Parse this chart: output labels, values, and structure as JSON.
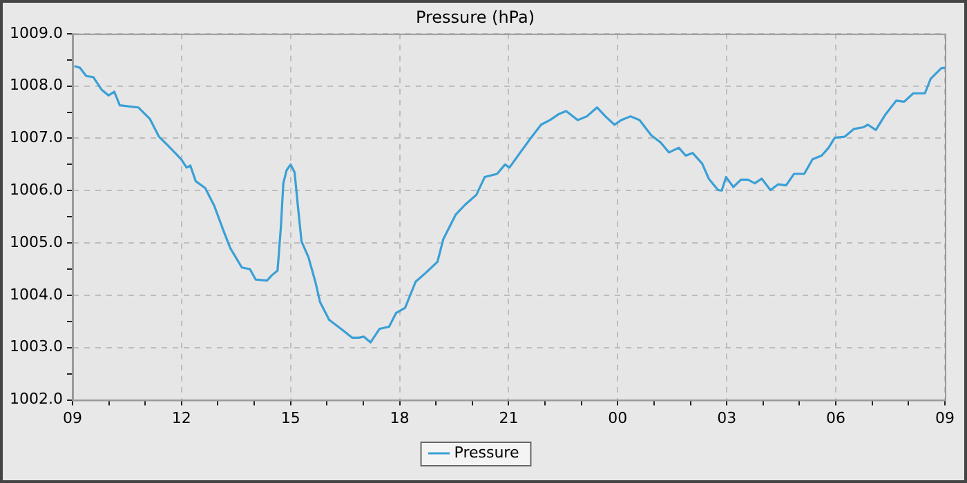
{
  "chart_data": {
    "type": "line",
    "title": "Pressure (hPa)",
    "xlim": [
      9,
      33
    ],
    "xticks": [
      {
        "value": 9,
        "label": "09"
      },
      {
        "value": 10,
        "label": null
      },
      {
        "value": 11,
        "label": null
      },
      {
        "value": 12,
        "label": "12"
      },
      {
        "value": 13,
        "label": null
      },
      {
        "value": 14,
        "label": null
      },
      {
        "value": 15,
        "label": "15"
      },
      {
        "value": 16,
        "label": null
      },
      {
        "value": 17,
        "label": null
      },
      {
        "value": 18,
        "label": "18"
      },
      {
        "value": 19,
        "label": null
      },
      {
        "value": 20,
        "label": null
      },
      {
        "value": 21,
        "label": "21"
      },
      {
        "value": 22,
        "label": null
      },
      {
        "value": 23,
        "label": null
      },
      {
        "value": 24,
        "label": "00"
      },
      {
        "value": 25,
        "label": null
      },
      {
        "value": 26,
        "label": null
      },
      {
        "value": 27,
        "label": "03"
      },
      {
        "value": 28,
        "label": null
      },
      {
        "value": 29,
        "label": null
      },
      {
        "value": 30,
        "label": "06"
      },
      {
        "value": 31,
        "label": null
      },
      {
        "value": 32,
        "label": null
      },
      {
        "value": 33,
        "label": "09"
      }
    ],
    "ylim": [
      1002,
      1009
    ],
    "yticks": [
      {
        "value": 1002,
        "label": "1002.0"
      },
      {
        "value": 1002.5,
        "label": null
      },
      {
        "value": 1003,
        "label": "1003.0"
      },
      {
        "value": 1003.5,
        "label": null
      },
      {
        "value": 1004,
        "label": "1004.0"
      },
      {
        "value": 1004.5,
        "label": null
      },
      {
        "value": 1005,
        "label": "1005.0"
      },
      {
        "value": 1005.5,
        "label": null
      },
      {
        "value": 1006,
        "label": "1006.0"
      },
      {
        "value": 1006.5,
        "label": null
      },
      {
        "value": 1007,
        "label": "1007.0"
      },
      {
        "value": 1007.5,
        "label": null
      },
      {
        "value": 1008,
        "label": "1008.0"
      },
      {
        "value": 1008.5,
        "label": null
      },
      {
        "value": 1009,
        "label": "1009.0"
      }
    ],
    "grid": true,
    "legend": "bottom",
    "marker": "none",
    "line_style": "solid",
    "series": [
      {
        "name": "Pressure",
        "color": "#3a9fd6",
        "x": [
          9.05,
          9.2,
          9.38,
          9.57,
          9.8,
          9.99,
          10.15,
          10.3,
          10.81,
          11.13,
          11.38,
          11.63,
          11.99,
          12.14,
          12.24,
          12.39,
          12.65,
          12.9,
          13.15,
          13.34,
          13.66,
          13.88,
          14.04,
          14.35,
          14.48,
          14.64,
          14.73,
          14.8,
          14.89,
          15.0,
          15.11,
          15.2,
          15.3,
          15.49,
          15.68,
          15.81,
          16.06,
          16.44,
          16.69,
          16.88,
          17.01,
          17.2,
          17.45,
          17.71,
          17.9,
          18.15,
          18.44,
          18.72,
          19.04,
          19.2,
          19.54,
          19.8,
          20.11,
          20.34,
          20.68,
          20.9,
          21.02,
          21.32,
          21.57,
          21.89,
          22.14,
          22.37,
          22.58,
          22.9,
          23.15,
          23.43,
          23.66,
          23.91,
          24.1,
          24.35,
          24.6,
          24.92,
          25.18,
          25.41,
          25.68,
          25.87,
          26.06,
          26.32,
          26.51,
          26.76,
          26.86,
          26.98,
          27.18,
          27.39,
          27.58,
          27.77,
          27.96,
          28.2,
          28.41,
          28.63,
          28.85,
          29.13,
          29.36,
          29.61,
          29.8,
          29.97,
          30.24,
          30.5,
          30.75,
          30.88,
          31.1,
          31.35,
          31.66,
          31.88,
          32.13,
          32.45,
          32.61,
          32.9,
          33.0
        ],
        "values": [
          1008.38,
          1008.35,
          1008.19,
          1008.17,
          1007.93,
          1007.82,
          1007.89,
          1007.63,
          1007.59,
          1007.37,
          1007.03,
          1006.86,
          1006.6,
          1006.44,
          1006.48,
          1006.18,
          1006.05,
          1005.71,
          1005.24,
          1004.9,
          1004.53,
          1004.5,
          1004.3,
          1004.28,
          1004.38,
          1004.47,
          1005.28,
          1006.14,
          1006.39,
          1006.5,
          1006.35,
          1005.71,
          1005.03,
          1004.73,
          1004.26,
          1003.87,
          1003.53,
          1003.33,
          1003.19,
          1003.19,
          1003.21,
          1003.1,
          1003.36,
          1003.4,
          1003.66,
          1003.76,
          1004.26,
          1004.43,
          1004.64,
          1005.07,
          1005.54,
          1005.73,
          1005.92,
          1006.26,
          1006.32,
          1006.5,
          1006.44,
          1006.73,
          1006.97,
          1007.26,
          1007.35,
          1007.46,
          1007.52,
          1007.35,
          1007.42,
          1007.59,
          1007.42,
          1007.26,
          1007.35,
          1007.42,
          1007.35,
          1007.06,
          1006.92,
          1006.73,
          1006.82,
          1006.67,
          1006.72,
          1006.52,
          1006.22,
          1006.01,
          1006.0,
          1006.26,
          1006.07,
          1006.21,
          1006.21,
          1006.14,
          1006.23,
          1006.01,
          1006.12,
          1006.1,
          1006.32,
          1006.32,
          1006.6,
          1006.67,
          1006.82,
          1007.01,
          1007.03,
          1007.18,
          1007.21,
          1007.26,
          1007.16,
          1007.44,
          1007.72,
          1007.7,
          1007.86,
          1007.86,
          1008.14,
          1008.34,
          1008.35
        ]
      }
    ]
  }
}
